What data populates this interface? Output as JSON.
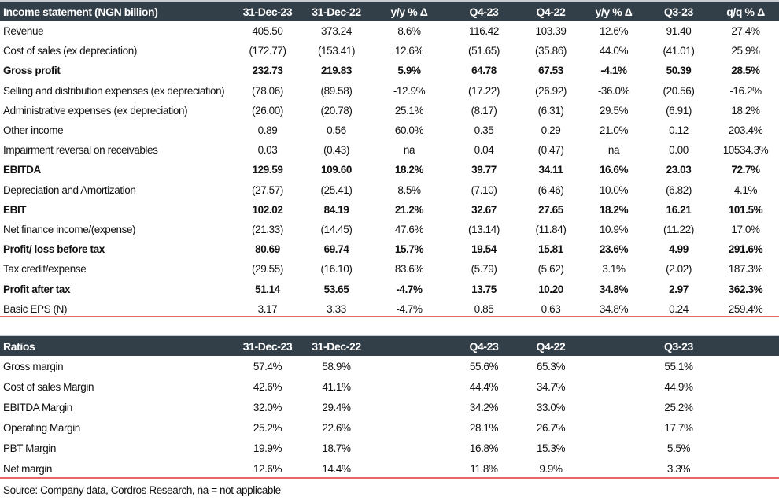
{
  "income_statement": {
    "headers": [
      "Income statement (NGN billion)",
      "31-Dec-23",
      "31-Dec-22",
      "y/y % Δ",
      "Q4-23",
      "Q4-22",
      "y/y % Δ",
      "Q3-23",
      "q/q % Δ"
    ],
    "rows": [
      {
        "bold": false,
        "cells": [
          "Revenue",
          "405.50",
          "373.24",
          "8.6%",
          "116.42",
          "103.39",
          "12.6%",
          "91.40",
          "27.4%"
        ]
      },
      {
        "bold": false,
        "cells": [
          "Cost of sales (ex depreciation)",
          "(172.77)",
          "(153.41)",
          "12.6%",
          "(51.65)",
          "(35.86)",
          "44.0%",
          "(41.01)",
          "25.9%"
        ]
      },
      {
        "bold": true,
        "cells": [
          "Gross profit",
          "232.73",
          "219.83",
          "5.9%",
          "64.78",
          "67.53",
          "-4.1%",
          "50.39",
          "28.5%"
        ]
      },
      {
        "bold": false,
        "cells": [
          "Selling and distribution expenses (ex depreciation)",
          "(78.06)",
          "(89.58)",
          "-12.9%",
          "(17.22)",
          "(26.92)",
          "-36.0%",
          "(20.56)",
          "-16.2%"
        ]
      },
      {
        "bold": false,
        "cells": [
          "Administrative expenses (ex depreciation)",
          "(26.00)",
          "(20.78)",
          "25.1%",
          "(8.17)",
          "(6.31)",
          "29.5%",
          "(6.91)",
          "18.2%"
        ]
      },
      {
        "bold": false,
        "cells": [
          "Other income",
          "0.89",
          "0.56",
          "60.0%",
          "0.35",
          "0.29",
          "21.0%",
          "0.12",
          "203.4%"
        ]
      },
      {
        "bold": false,
        "cells": [
          "Impairment reversal on receivables",
          "0.03",
          "(0.43)",
          "na",
          "0.04",
          "(0.47)",
          "na",
          "0.00",
          "10534.3%"
        ]
      },
      {
        "bold": true,
        "cells": [
          "EBITDA",
          "129.59",
          "109.60",
          "18.2%",
          "39.77",
          "34.11",
          "16.6%",
          "23.03",
          "72.7%"
        ]
      },
      {
        "bold": false,
        "cells": [
          "Depreciation and Amortization",
          "(27.57)",
          "(25.41)",
          "8.5%",
          "(7.10)",
          "(6.46)",
          "10.0%",
          "(6.82)",
          "4.1%"
        ]
      },
      {
        "bold": true,
        "cells": [
          "EBIT",
          "102.02",
          "84.19",
          "21.2%",
          "32.67",
          "27.65",
          "18.2%",
          "16.21",
          "101.5%"
        ]
      },
      {
        "bold": false,
        "cells": [
          "Net finance income/(expense)",
          "(21.33)",
          "(14.45)",
          "47.6%",
          "(13.14)",
          "(11.84)",
          "10.9%",
          "(11.22)",
          "17.0%"
        ]
      },
      {
        "bold": true,
        "cells": [
          "Profit/ loss before tax",
          "80.69",
          "69.74",
          "15.7%",
          "19.54",
          "15.81",
          "23.6%",
          "4.99",
          "291.6%"
        ]
      },
      {
        "bold": false,
        "cells": [
          "Tax credit/expense",
          "(29.55)",
          "(16.10)",
          "83.6%",
          "(5.79)",
          "(5.62)",
          "3.1%",
          "(2.02)",
          "187.3%"
        ]
      },
      {
        "bold": true,
        "cells": [
          "Profit after tax",
          "51.14",
          "53.65",
          "-4.7%",
          "13.75",
          "10.20",
          "34.8%",
          "2.97",
          "362.3%"
        ]
      },
      {
        "bold": false,
        "cells": [
          "Basic EPS (N)",
          "3.17",
          "3.33",
          "-4.7%",
          "0.85",
          "0.63",
          "34.8%",
          "0.24",
          "259.4%"
        ]
      }
    ]
  },
  "ratios": {
    "headers": [
      "Ratios",
      "31-Dec-23",
      "31-Dec-22",
      "",
      "Q4-23",
      "Q4-22",
      "",
      "Q3-23",
      ""
    ],
    "rows": [
      {
        "bold": false,
        "cells": [
          "Gross margin",
          "57.4%",
          "58.9%",
          "",
          "55.6%",
          "65.3%",
          "",
          "55.1%",
          ""
        ]
      },
      {
        "bold": false,
        "cells": [
          "Cost of sales Margin",
          "42.6%",
          "41.1%",
          "",
          "44.4%",
          "34.7%",
          "",
          "44.9%",
          ""
        ]
      },
      {
        "bold": false,
        "cells": [
          "EBITDA Margin",
          "32.0%",
          "29.4%",
          "",
          "34.2%",
          "33.0%",
          "",
          "25.2%",
          ""
        ]
      },
      {
        "bold": false,
        "cells": [
          "Operating Margin",
          "25.2%",
          "22.6%",
          "",
          "28.1%",
          "26.7%",
          "",
          "17.7%",
          ""
        ]
      },
      {
        "bold": false,
        "cells": [
          "PBT Margin",
          "19.9%",
          "18.7%",
          "",
          "16.8%",
          "15.3%",
          "",
          "5.5%",
          ""
        ]
      },
      {
        "bold": false,
        "cells": [
          "Net margin",
          "12.6%",
          "14.4%",
          "",
          "11.8%",
          "9.9%",
          "",
          "3.3%",
          ""
        ]
      }
    ]
  },
  "source": "Source: Company data, Cordros Research, na = not applicable",
  "colors": {
    "header_bg": "#323e48",
    "rule": "#e8686a"
  }
}
